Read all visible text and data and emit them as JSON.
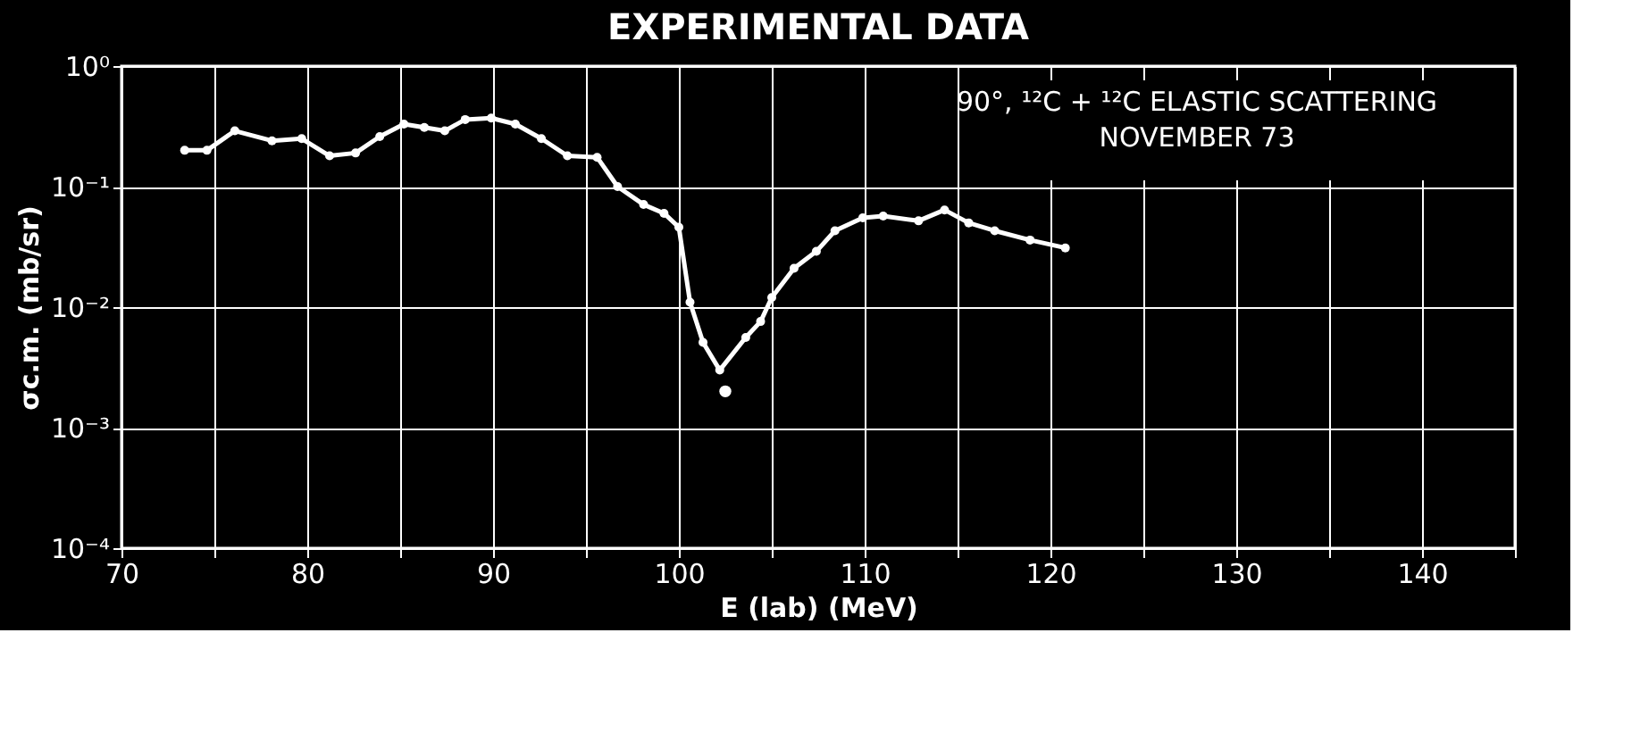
{
  "chart_data": {
    "type": "line",
    "title": "EXPERIMENTAL DATA",
    "xlabel": "E (lab) (MeV)",
    "ylabel": "σc.m. (mb/sr)",
    "annotations": [
      "90°, ¹²C + ¹²C ELASTIC SCATTERING",
      "NOVEMBER 73"
    ],
    "log": "y",
    "grid": true,
    "marker": "circle",
    "line_style": "solid",
    "xlim": [
      70,
      145
    ],
    "xticks": [
      70,
      {
        "value": 75,
        "label": null
      },
      80,
      {
        "value": 85,
        "label": null
      },
      90,
      {
        "value": 95,
        "label": null
      },
      100,
      {
        "value": 105,
        "label": null
      },
      110,
      {
        "value": 115,
        "label": null
      },
      120,
      {
        "value": 125,
        "label": null
      },
      130,
      {
        "value": 135,
        "label": null
      },
      140,
      {
        "value": 145,
        "label": null
      }
    ],
    "ylim": [
      0.0001,
      1
    ],
    "yticks": [
      {
        "value": 0.0001,
        "label": "10⁻⁴"
      },
      {
        "value": 0.001,
        "label": "10⁻³"
      },
      {
        "value": 0.01,
        "label": "10⁻²"
      },
      {
        "value": 0.1,
        "label": "10⁻¹"
      },
      {
        "value": 1,
        "label": "10⁰"
      }
    ],
    "series": [
      {
        "color": "#ffffff",
        "x": [
          73.4,
          74.6,
          76.1,
          78.1,
          79.7,
          81.2,
          82.6,
          83.9,
          85.2,
          86.3,
          87.4,
          88.5,
          89.9,
          91.2,
          92.6,
          94.0,
          95.6,
          96.7,
          98.1,
          99.2,
          100.0,
          100.6,
          101.3,
          102.2,
          103.6,
          104.4,
          105.0,
          106.2,
          107.4,
          108.4,
          109.9,
          111.0,
          112.9,
          114.3,
          115.6,
          117.0,
          118.9,
          120.8
        ],
        "values": [
          0.2,
          0.2,
          0.29,
          0.24,
          0.25,
          0.18,
          0.19,
          0.26,
          0.33,
          0.31,
          0.29,
          0.36,
          0.37,
          0.33,
          0.25,
          0.18,
          0.175,
          0.1,
          0.071,
          0.06,
          0.046,
          0.011,
          0.0051,
          0.003,
          0.0056,
          0.0076,
          0.012,
          0.021,
          0.029,
          0.043,
          0.055,
          0.057,
          0.052,
          0.064,
          0.05,
          0.043,
          0.036,
          0.031
        ]
      },
      {
        "type": "scatter",
        "color": "#ffffff",
        "x": [
          102.5
        ],
        "values": [
          0.002
        ]
      }
    ]
  }
}
